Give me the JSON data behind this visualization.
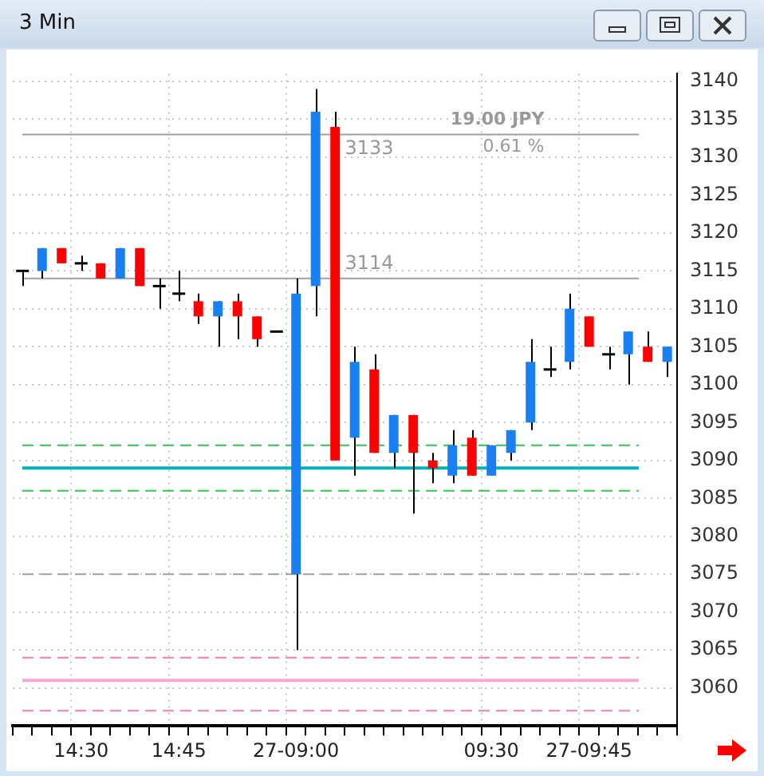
{
  "chart_data": {
    "type": "candlestick",
    "title": "3 Min",
    "categories": [
      null,
      null,
      null,
      "14:30",
      null,
      null,
      null,
      null,
      "14:45",
      null,
      null,
      null,
      null,
      null,
      "27-09:00",
      null,
      null,
      null,
      null,
      null,
      null,
      null,
      null,
      null,
      "09:30",
      null,
      null,
      null,
      null,
      "27-09:45",
      null,
      null,
      null,
      null
    ],
    "ohlc": [
      [
        3115,
        3115,
        3113,
        3115
      ],
      [
        3115,
        3118,
        3114,
        3118
      ],
      [
        3118,
        3118,
        3116,
        3116
      ],
      [
        3116,
        3117,
        3115,
        3116
      ],
      [
        3116,
        3116,
        3114,
        3114
      ],
      [
        3114,
        3118,
        3114,
        3118
      ],
      [
        3118,
        3118,
        3113,
        3113
      ],
      [
        3113,
        3114,
        3110,
        3113
      ],
      [
        3112,
        3115,
        3111,
        3112
      ],
      [
        3111,
        3112,
        3108,
        3109
      ],
      [
        3109,
        3111,
        3105,
        3111
      ],
      [
        3111,
        3112,
        3106,
        3109
      ],
      [
        3109,
        3109,
        3105,
        3106
      ],
      [
        3107,
        3107,
        3107,
        3107
      ],
      [
        3075,
        3114,
        3065,
        3112
      ],
      [
        3113,
        3139,
        3109,
        3136
      ],
      [
        3134,
        3136,
        3090,
        3090
      ],
      [
        3093,
        3105,
        3088,
        3103
      ],
      [
        3102,
        3104,
        3091,
        3091
      ],
      [
        3091,
        3096,
        3089,
        3096
      ],
      [
        3096,
        3096,
        3083,
        3091
      ],
      [
        3090,
        3091,
        3087,
        3089
      ],
      [
        3088,
        3094,
        3087,
        3092
      ],
      [
        3093,
        3094,
        3088,
        3088
      ],
      [
        3088,
        3092,
        3088,
        3092
      ],
      [
        3091,
        3094,
        3090,
        3094
      ],
      [
        3095,
        3106,
        3094,
        3103
      ],
      [
        3102,
        3105,
        3101,
        3102
      ],
      [
        3103,
        3112,
        3102,
        3110
      ],
      [
        3109,
        3109,
        3105,
        3105
      ],
      [
        3104,
        3105,
        3102,
        3104
      ],
      [
        3104,
        3107,
        3100,
        3107
      ],
      [
        3105,
        3107,
        3103,
        3103
      ],
      [
        3103,
        3105,
        3101,
        3105
      ]
    ],
    "colors": [
      "#000000",
      "#1a7ff0",
      "#ff0000",
      "#000000",
      "#ff0000",
      "#1a7ff0",
      "#ff0000",
      "#000000",
      "#000000",
      "#ff0000",
      "#1a7ff0",
      "#ff0000",
      "#ff0000",
      "#000000",
      "#1a7ff0",
      "#1a7ff0",
      "#ff0000",
      "#1a7ff0",
      "#ff0000",
      "#1a7ff0",
      "#ff0000",
      "#ff0000",
      "#1a7ff0",
      "#ff0000",
      "#1a7ff0",
      "#1a7ff0",
      "#1a7ff0",
      "#000000",
      "#1a7ff0",
      "#ff0000",
      "#000000",
      "#1a7ff0",
      "#ff0000",
      "#1a7ff0"
    ],
    "ylim": [
      3055,
      3141
    ],
    "yticks": [
      3060,
      3065,
      3070,
      3075,
      3080,
      3085,
      3090,
      3095,
      3100,
      3105,
      3110,
      3115,
      3120,
      3125,
      3130,
      3135,
      3140
    ],
    "grid": true,
    "ref_lines": [
      {
        "axis": "y",
        "value": 3089,
        "color": "#00b4b4",
        "line_style": "solid"
      },
      {
        "axis": "y",
        "value": 3092,
        "color": "#33c455",
        "line_style": "dashed"
      },
      {
        "axis": "y",
        "value": 3086,
        "color": "#33c455",
        "line_style": "dashed"
      },
      {
        "axis": "y",
        "value": 3075,
        "color": "#a0a0a0",
        "line_style": "dashed"
      },
      {
        "axis": "y",
        "value": 3064,
        "color": "#f080b0",
        "line_style": "dashed"
      },
      {
        "axis": "y",
        "value": 3061,
        "color": "#f8a8d0",
        "line_style": "solid"
      },
      {
        "axis": "y",
        "value": 3057,
        "color": "#f080b0",
        "line_style": "dashed"
      },
      {
        "axis": "y",
        "value": 3133,
        "label": "3133",
        "color": "#a0a0a0",
        "line_style": "solid"
      },
      {
        "axis": "y",
        "value": 3114,
        "label": "3114",
        "color": "#a0a0a0",
        "line_style": "solid"
      }
    ],
    "annotations": [
      "19.00 JPY",
      "0.61 %"
    ]
  }
}
